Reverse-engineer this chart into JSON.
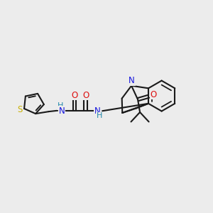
{
  "bg": "#ececec",
  "bc": "#1a1a1a",
  "lw": 1.5,
  "S_col": "#c8b000",
  "N_blue": "#1515dd",
  "N_teal": "#2288aa",
  "O_col": "#dd1111",
  "H_col": "#2288aa",
  "fs": 8.5,
  "figsize": [
    3.0,
    3.0
  ],
  "dpi": 100,
  "xlim": [
    0,
    10
  ],
  "ylim": [
    0,
    10
  ]
}
